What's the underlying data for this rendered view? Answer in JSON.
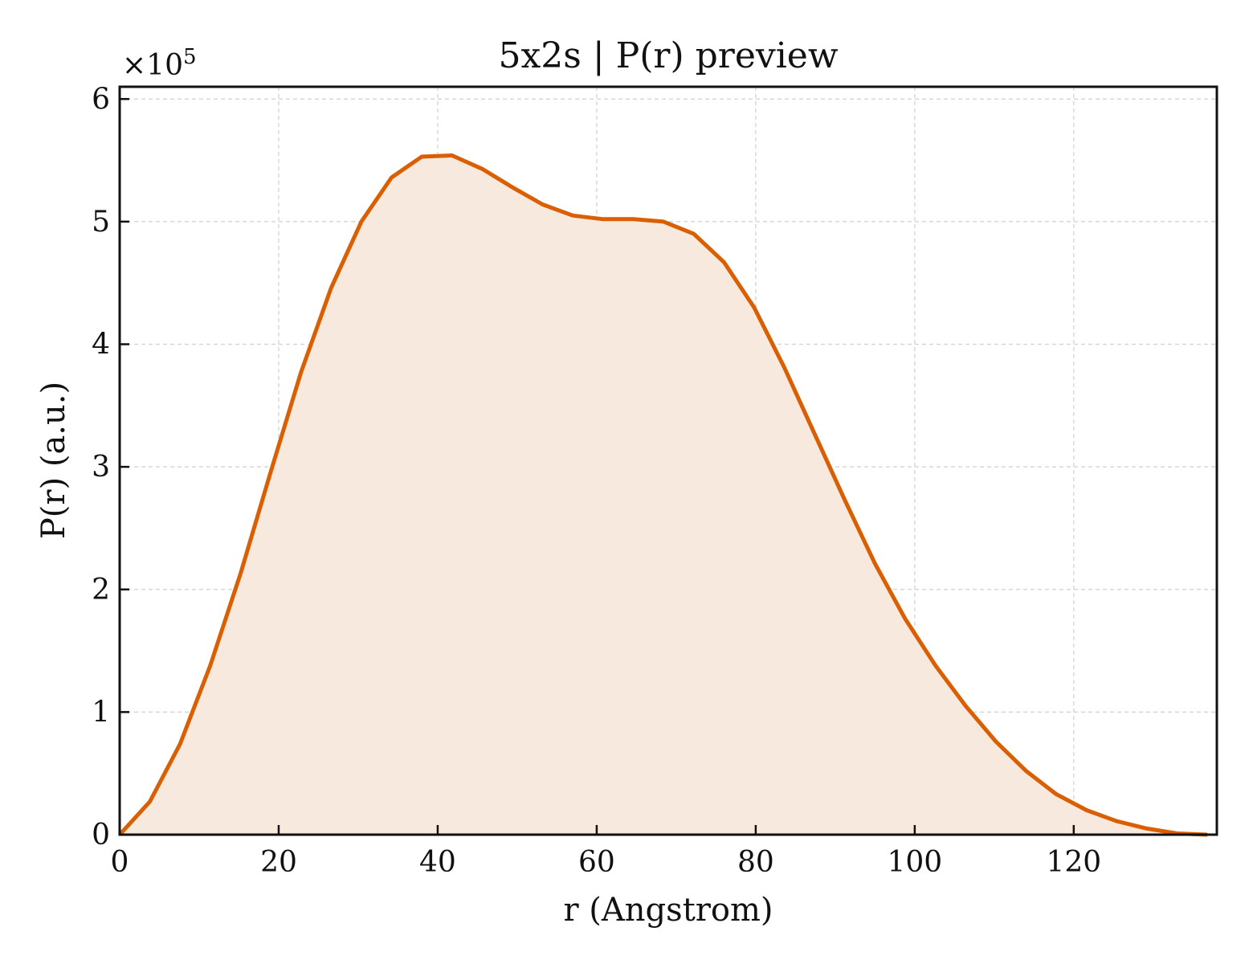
{
  "chart_data": {
    "type": "area",
    "title": "5x2s | P(r) preview",
    "xlabel": "r (Angstrom)",
    "ylabel": "P(r) (a.u.)",
    "y_multiplier_label": "×10",
    "y_multiplier_exponent": "5",
    "xlim": [
      0,
      138
    ],
    "ylim": [
      0,
      6.1
    ],
    "y_scale": 100000,
    "xticks": [
      0,
      20,
      40,
      60,
      80,
      100,
      120
    ],
    "yticks": [
      0,
      1,
      2,
      3,
      4,
      5,
      6
    ],
    "grid": true,
    "line_color": "#d95f02",
    "fill_color": "#f8e9df",
    "series": [
      {
        "x": [
          0,
          3.8,
          7.6,
          11.4,
          15.2,
          19.0,
          22.8,
          26.6,
          30.4,
          34.2,
          38.0,
          41.8,
          45.6,
          49.4,
          53.2,
          57.0,
          60.8,
          64.6,
          68.4,
          72.2,
          76.0,
          79.8,
          83.6,
          87.4,
          91.2,
          95.0,
          98.8,
          102.6,
          106.4,
          110.2,
          114.0,
          117.8,
          121.6,
          125.4,
          129.2,
          133.0,
          136.8
        ],
        "y": [
          0.0,
          0.27,
          0.74,
          1.38,
          2.13,
          2.96,
          3.77,
          4.46,
          5.0,
          5.36,
          5.53,
          5.54,
          5.43,
          5.28,
          5.14,
          5.05,
          5.02,
          5.02,
          5.0,
          4.9,
          4.67,
          4.3,
          3.81,
          3.27,
          2.73,
          2.21,
          1.76,
          1.38,
          1.05,
          0.76,
          0.52,
          0.33,
          0.2,
          0.11,
          0.05,
          0.01,
          0.0
        ]
      }
    ]
  }
}
